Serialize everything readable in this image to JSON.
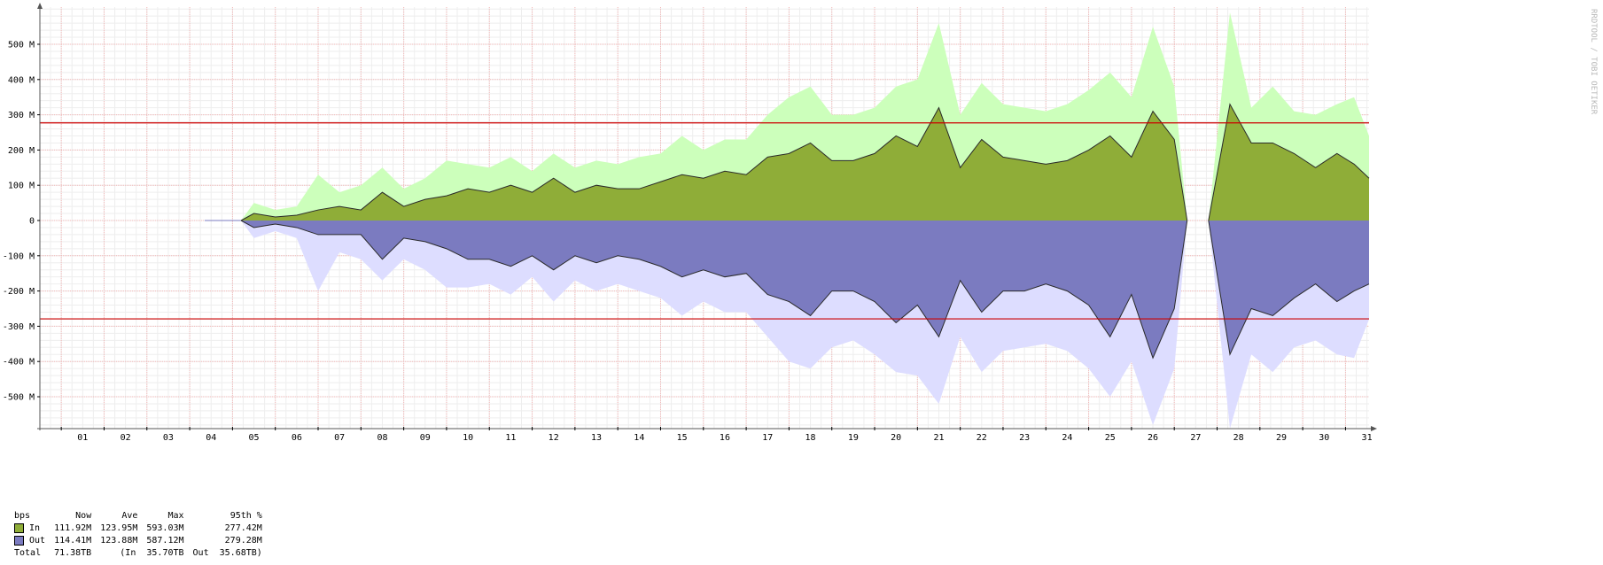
{
  "chart_data": {
    "type": "area",
    "y_unit_note": "bits per second; negative axis values show outbound traffic",
    "ylim": [
      -590000000,
      600000000
    ],
    "y_ticks": [
      {
        "value": 500000000,
        "label": "500 M"
      },
      {
        "value": 400000000,
        "label": "400 M"
      },
      {
        "value": 300000000,
        "label": "300 M"
      },
      {
        "value": 200000000,
        "label": "200 M"
      },
      {
        "value": 100000000,
        "label": "100 M"
      },
      {
        "value": 0,
        "label": "0"
      },
      {
        "value": -100000000,
        "label": "-100 M"
      },
      {
        "value": -200000000,
        "label": "-200 M"
      },
      {
        "value": -300000000,
        "label": "-300 M"
      },
      {
        "value": -400000000,
        "label": "-400 M"
      },
      {
        "value": -500000000,
        "label": "-500 M"
      }
    ],
    "x_label_suffix": "day of month",
    "categories": [
      "01",
      "02",
      "03",
      "04",
      "05",
      "06",
      "07",
      "08",
      "09",
      "10",
      "11",
      "12",
      "13",
      "14",
      "15",
      "16",
      "17",
      "18",
      "19",
      "20",
      "21",
      "22",
      "23",
      "24",
      "25",
      "26",
      "27",
      "28",
      "29",
      "30",
      "31"
    ],
    "x_range_days": [
      0.5,
      31.55
    ],
    "data_gap_days": [
      27.3,
      27.8
    ],
    "threshold_lines": [
      {
        "value": 277000000,
        "color": "#cc0000"
      },
      {
        "value": -279000000,
        "color": "#cc0000"
      }
    ],
    "series": [
      {
        "name": "In",
        "direction": 1,
        "fill": "#8fad38",
        "max_fill": "#ccffbb",
        "x_days": [
          5.2,
          5.5,
          6.0,
          6.5,
          7.0,
          7.5,
          8.0,
          8.5,
          9.0,
          9.5,
          10.0,
          10.5,
          11.0,
          11.5,
          12.0,
          12.5,
          13.0,
          13.5,
          14.0,
          14.5,
          15.0,
          15.5,
          16.0,
          16.5,
          17.0,
          17.5,
          18.0,
          18.5,
          19.0,
          19.5,
          20.0,
          20.5,
          21.0,
          21.5,
          22.0,
          22.5,
          23.0,
          23.5,
          24.0,
          24.5,
          25.0,
          25.5,
          26.0,
          26.5,
          27.0,
          27.3,
          27.8,
          28.3,
          28.8,
          29.3,
          29.8,
          30.3,
          30.8,
          31.2,
          31.55
        ],
        "avg_values": [
          0,
          20000000,
          10000000,
          15000000,
          30000000,
          40000000,
          30000000,
          80000000,
          40000000,
          60000000,
          70000000,
          90000000,
          80000000,
          100000000,
          80000000,
          120000000,
          80000000,
          100000000,
          90000000,
          90000000,
          110000000,
          130000000,
          120000000,
          140000000,
          130000000,
          180000000,
          190000000,
          220000000,
          170000000,
          170000000,
          190000000,
          240000000,
          210000000,
          320000000,
          150000000,
          230000000,
          180000000,
          170000000,
          160000000,
          170000000,
          200000000,
          240000000,
          180000000,
          310000000,
          230000000,
          0,
          0,
          330000000,
          220000000,
          220000000,
          190000000,
          150000000,
          190000000,
          160000000,
          120000000
        ],
        "max_values": [
          0,
          50000000,
          30000000,
          40000000,
          130000000,
          80000000,
          100000000,
          150000000,
          90000000,
          120000000,
          170000000,
          160000000,
          150000000,
          180000000,
          140000000,
          190000000,
          150000000,
          170000000,
          160000000,
          180000000,
          190000000,
          240000000,
          200000000,
          230000000,
          230000000,
          300000000,
          350000000,
          380000000,
          300000000,
          300000000,
          320000000,
          380000000,
          400000000,
          560000000,
          300000000,
          390000000,
          330000000,
          320000000,
          310000000,
          330000000,
          370000000,
          420000000,
          350000000,
          550000000,
          380000000,
          0,
          0,
          590000000,
          320000000,
          380000000,
          310000000,
          300000000,
          330000000,
          350000000,
          240000000
        ]
      },
      {
        "name": "Out",
        "direction": -1,
        "fill": "#7b7bc0",
        "max_fill": "#ddddff",
        "x_days": [
          5.2,
          5.5,
          6.0,
          6.5,
          7.0,
          7.5,
          8.0,
          8.5,
          9.0,
          9.5,
          10.0,
          10.5,
          11.0,
          11.5,
          12.0,
          12.5,
          13.0,
          13.5,
          14.0,
          14.5,
          15.0,
          15.5,
          16.0,
          16.5,
          17.0,
          17.5,
          18.0,
          18.5,
          19.0,
          19.5,
          20.0,
          20.5,
          21.0,
          21.5,
          22.0,
          22.5,
          23.0,
          23.5,
          24.0,
          24.5,
          25.0,
          25.5,
          26.0,
          26.5,
          27.0,
          27.3,
          27.8,
          28.3,
          28.8,
          29.3,
          29.8,
          30.3,
          30.8,
          31.2,
          31.55
        ],
        "avg_values": [
          0,
          20000000,
          10000000,
          20000000,
          40000000,
          40000000,
          40000000,
          110000000,
          50000000,
          60000000,
          80000000,
          110000000,
          110000000,
          130000000,
          100000000,
          140000000,
          100000000,
          120000000,
          100000000,
          110000000,
          130000000,
          160000000,
          140000000,
          160000000,
          150000000,
          210000000,
          230000000,
          270000000,
          200000000,
          200000000,
          230000000,
          290000000,
          240000000,
          330000000,
          170000000,
          260000000,
          200000000,
          200000000,
          180000000,
          200000000,
          240000000,
          330000000,
          210000000,
          390000000,
          250000000,
          0,
          0,
          380000000,
          250000000,
          270000000,
          220000000,
          180000000,
          230000000,
          200000000,
          180000000
        ],
        "max_values": [
          0,
          50000000,
          30000000,
          50000000,
          200000000,
          90000000,
          110000000,
          170000000,
          110000000,
          140000000,
          190000000,
          190000000,
          180000000,
          210000000,
          160000000,
          230000000,
          170000000,
          200000000,
          180000000,
          200000000,
          220000000,
          270000000,
          230000000,
          260000000,
          260000000,
          330000000,
          400000000,
          420000000,
          360000000,
          340000000,
          380000000,
          430000000,
          440000000,
          520000000,
          330000000,
          430000000,
          370000000,
          360000000,
          350000000,
          370000000,
          420000000,
          500000000,
          400000000,
          580000000,
          420000000,
          0,
          0,
          590000000,
          380000000,
          430000000,
          360000000,
          340000000,
          380000000,
          390000000,
          280000000
        ]
      }
    ]
  },
  "vertical_label": "RRDTOOL / TOBI OETIKER",
  "legend": {
    "unit": "bps",
    "headers": [
      "Now",
      "Ave",
      "Max",
      "95th %"
    ],
    "rows": [
      {
        "name": "In",
        "color": "#8fad38",
        "now": "111.92M",
        "ave": "123.95M",
        "max": "593.03M",
        "p95": "277.42M"
      },
      {
        "name": "Out",
        "color": "#7b7bc0",
        "now": "114.41M",
        "ave": "123.88M",
        "max": "587.12M",
        "p95": "279.28M"
      }
    ],
    "total": {
      "label": "Total",
      "value": "71.38TB",
      "in_part": "(In  35.70TB",
      "out_part": "Out  35.68TB)"
    }
  }
}
